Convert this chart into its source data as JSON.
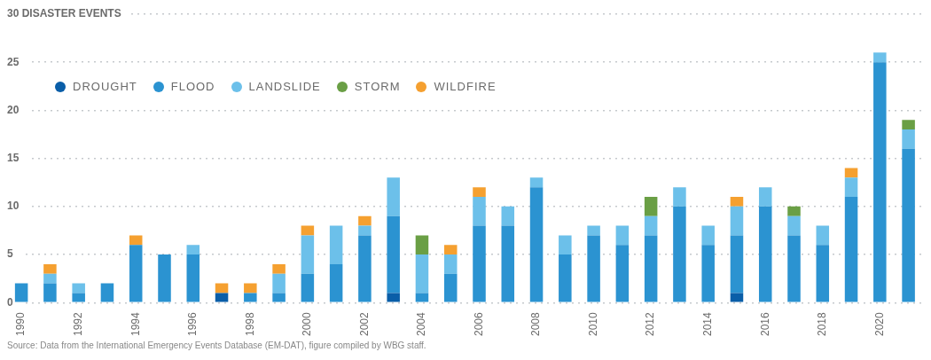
{
  "chart_data": {
    "type": "bar",
    "stacked": true,
    "categories": [
      "1990",
      null,
      "1992",
      null,
      "1994",
      null,
      "1996",
      null,
      "1998",
      null,
      "2000",
      null,
      "2002",
      null,
      "2004",
      null,
      "2006",
      null,
      "2008",
      null,
      "2010",
      null,
      "2012",
      null,
      "2014",
      null,
      "2016",
      null,
      "2018",
      null,
      "2020",
      null
    ],
    "series": [
      {
        "name": "DROUGHT",
        "color": "#0a5ea8",
        "values": [
          0,
          0,
          0,
          0,
          0,
          0,
          0,
          1,
          0,
          0,
          0,
          0,
          0,
          1,
          0,
          0,
          0,
          0,
          0,
          0,
          0,
          0,
          0,
          0,
          0,
          1,
          0,
          0,
          0,
          0,
          0,
          0
        ]
      },
      {
        "name": "FLOOD",
        "color": "#2b93d1",
        "values": [
          2,
          2,
          1,
          2,
          6,
          5,
          5,
          0,
          1,
          1,
          3,
          4,
          7,
          8,
          1,
          3,
          8,
          8,
          12,
          5,
          7,
          6,
          7,
          10,
          6,
          6,
          10,
          7,
          6,
          11,
          25,
          16
        ]
      },
      {
        "name": "LANDSLIDE",
        "color": "#6cc0ea",
        "values": [
          0,
          1,
          1,
          0,
          0,
          0,
          1,
          0,
          0,
          2,
          4,
          4,
          1,
          4,
          4,
          2,
          3,
          2,
          1,
          2,
          1,
          2,
          2,
          2,
          2,
          3,
          2,
          2,
          2,
          2,
          1,
          2
        ]
      },
      {
        "name": "STORM",
        "color": "#6a9f45",
        "values": [
          0,
          0,
          0,
          0,
          0,
          0,
          0,
          0,
          0,
          0,
          0,
          0,
          0,
          0,
          2,
          0,
          0,
          0,
          0,
          0,
          0,
          0,
          2,
          0,
          0,
          0,
          0,
          1,
          0,
          0,
          0,
          1
        ]
      },
      {
        "name": "WILDFIRE",
        "color": "#f5a030",
        "values": [
          0,
          1,
          0,
          0,
          1,
          0,
          0,
          1,
          1,
          1,
          1,
          0,
          1,
          0,
          0,
          1,
          1,
          0,
          0,
          0,
          0,
          0,
          0,
          0,
          0,
          1,
          0,
          0,
          0,
          1,
          0,
          0
        ]
      }
    ],
    "ylim": [
      0,
      30
    ],
    "yticks": [
      0,
      5,
      10,
      15,
      20,
      25,
      {
        "value": 30,
        "label": "30 DISASTER EVENTS"
      }
    ],
    "grid": "y",
    "legend": "top left",
    "annotations": [
      "Source: Data from the International Emergency Events Database (EM-DAT), figure compiled by WBG staff."
    ]
  }
}
